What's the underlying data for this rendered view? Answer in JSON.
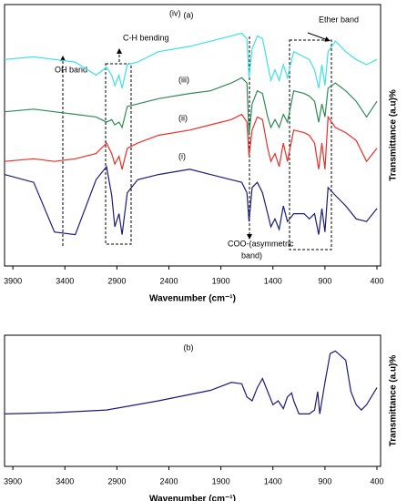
{
  "chart_data": [
    {
      "type": "line",
      "title": "(a)",
      "xlabel": "Wavenumber (cm⁻¹)",
      "ylabel": "Transmittance (a.u)%",
      "xlim": [
        3980,
        365
      ],
      "ylim": [
        0,
        100
      ],
      "xticks": [
        3900,
        3400,
        2900,
        2400,
        1900,
        1400,
        900,
        400
      ],
      "x": [
        3980,
        3700,
        3500,
        3300,
        3100,
        3000,
        2950,
        2920,
        2880,
        2850,
        2800,
        2700,
        2500,
        2200,
        2000,
        1800,
        1700,
        1650,
        1630,
        1600,
        1550,
        1500,
        1450,
        1420,
        1380,
        1340,
        1300,
        1260,
        1200,
        1100,
        1050,
        1000,
        960,
        930,
        900,
        870,
        800,
        700,
        600,
        500,
        400
      ],
      "series": [
        {
          "name": "(i)",
          "color": "#1c1c78",
          "values": [
            35,
            32,
            13,
            12,
            33,
            38,
            27,
            15,
            20,
            12,
            28,
            33,
            35,
            37,
            35,
            33,
            32,
            28,
            17,
            30,
            32,
            28,
            20,
            15,
            18,
            14,
            23,
            17,
            20,
            20,
            18,
            20,
            12,
            22,
            13,
            30,
            27,
            23,
            18,
            17,
            22
          ]
        },
        {
          "name": "(ii)",
          "color": "#e8302a",
          "values": [
            40,
            41,
            40,
            41,
            43,
            47,
            43,
            39,
            42,
            37,
            45,
            47,
            50,
            52,
            54,
            56,
            58,
            55,
            42,
            52,
            57,
            56,
            45,
            40,
            43,
            38,
            47,
            40,
            52,
            51,
            50,
            47,
            37,
            47,
            37,
            57,
            53,
            51,
            48,
            40,
            45
          ]
        },
        {
          "name": "(iii)",
          "color": "#2e8b57",
          "values": [
            59,
            60,
            59,
            58,
            57,
            55,
            56,
            54,
            55,
            53,
            61,
            62,
            64,
            66,
            67,
            70,
            72,
            70,
            50,
            62,
            67,
            66,
            57,
            53,
            56,
            53,
            58,
            55,
            67,
            66,
            65,
            63,
            55,
            62,
            57,
            68,
            70,
            67,
            63,
            57,
            63
          ]
        },
        {
          "name": "(iv)",
          "color": "#3fe0e8",
          "values": [
            79,
            80,
            79,
            78,
            73,
            76,
            73,
            69,
            73,
            68,
            77,
            78,
            82,
            84,
            86,
            88,
            89,
            87,
            72,
            83,
            88,
            87,
            77,
            71,
            75,
            71,
            77,
            72,
            82,
            80,
            79,
            75,
            68,
            77,
            69,
            82,
            86,
            82,
            79,
            77,
            79
          ]
        }
      ],
      "annotations": [
        "OH band",
        "C-H bending",
        "Ether band",
        "COO-(asymmetric",
        "band)"
      ]
    },
    {
      "type": "line",
      "title": "(b)",
      "xlabel": "Wavenumber (cm⁻¹)",
      "ylabel": "Transmittance (a.u)%",
      "xlim": [
        3980,
        365
      ],
      "ylim": [
        0,
        100
      ],
      "xticks": [
        3900,
        3400,
        2900,
        2400,
        1900,
        1400,
        900,
        400
      ],
      "x": [
        3980,
        3500,
        3000,
        2500,
        2000,
        1800,
        1700,
        1650,
        1600,
        1550,
        1500,
        1450,
        1400,
        1350,
        1300,
        1260,
        1220,
        1200,
        1150,
        1050,
        1000,
        970,
        950,
        900,
        850,
        800,
        700,
        650,
        600,
        550,
        500,
        400
      ],
      "series": [
        {
          "name": null,
          "color": "#1c1c78",
          "values": [
            40,
            41,
            43,
            50,
            58,
            64,
            63,
            53,
            50,
            60,
            67,
            57,
            47,
            50,
            44,
            53,
            56,
            50,
            40,
            40,
            43,
            57,
            40,
            64,
            86,
            88,
            81,
            57,
            47,
            43,
            47,
            60
          ]
        }
      ]
    }
  ]
}
